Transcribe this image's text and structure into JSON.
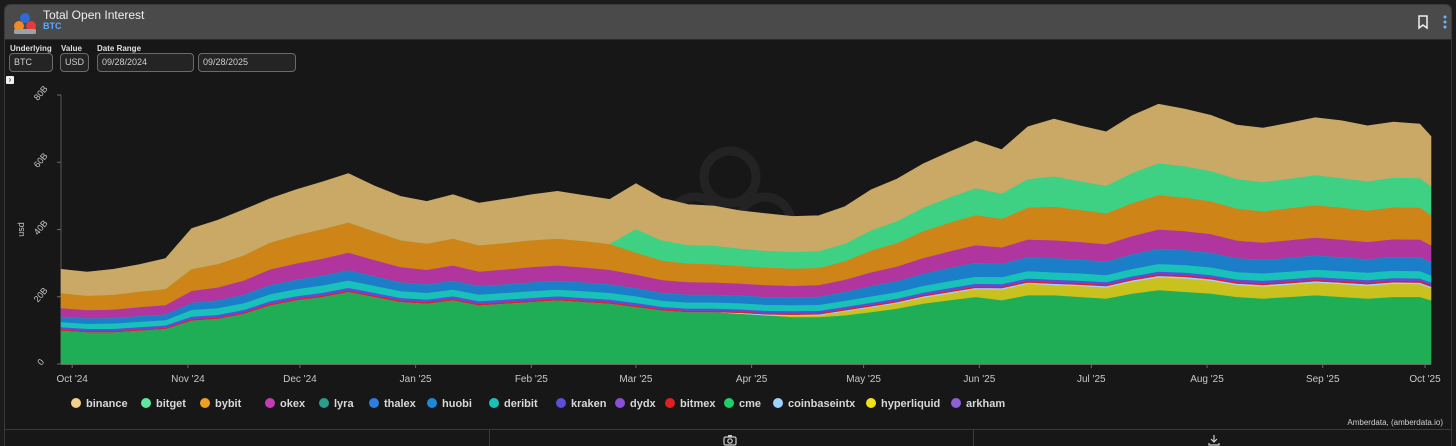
{
  "header": {
    "title": "Total Open Interest",
    "subtitle": "BTC"
  },
  "controls": {
    "underlying_label": "Underlying",
    "underlying_value": "BTC",
    "value_label": "Value",
    "value_value": "USD",
    "date_range_label": "Date Range",
    "date_start": "09/28/2024",
    "date_end": "09/28/2025"
  },
  "credit": "Amberdata, (amberdata.io)",
  "chart_data": {
    "type": "area",
    "title": "Total Open Interest",
    "xlabel": "",
    "ylabel": "usd",
    "stacked": true,
    "ylim": [
      0,
      80
    ],
    "y_unit": "B",
    "yticks": [
      "0",
      "20B",
      "40B",
      "60B",
      "80B"
    ],
    "ytick_values": [
      0,
      20,
      40,
      60,
      80
    ],
    "xlim": [
      0,
      367
    ],
    "xticks": [
      "Oct '24",
      "Nov '24",
      "Dec '24",
      "Jan '25",
      "Feb '25",
      "Mar '25",
      "Apr '25",
      "May '25",
      "Jun '25",
      "Jul '25",
      "Aug '25",
      "Sep '25",
      "Oct '25"
    ],
    "xtick_days": [
      3,
      34,
      64,
      95,
      126,
      154,
      185,
      215,
      246,
      276,
      307,
      338,
      368
    ],
    "legend_position": "bottom",
    "x_days": [
      0,
      7,
      14,
      21,
      28,
      35,
      42,
      49,
      56,
      63,
      70,
      77,
      84,
      91,
      98,
      105,
      112,
      119,
      126,
      133,
      140,
      147,
      154,
      161,
      168,
      175,
      182,
      189,
      196,
      203,
      210,
      217,
      224,
      231,
      238,
      245,
      252,
      259,
      266,
      273,
      280,
      287,
      294,
      301,
      308,
      315,
      322,
      329,
      336,
      343,
      350,
      357,
      364,
      367
    ],
    "series": [
      {
        "name": "cme",
        "color": "#1fae55",
        "values": [
          10,
          9.5,
          9.5,
          10,
          10.5,
          13,
          13.5,
          15,
          17.5,
          19,
          20,
          21.5,
          20,
          18.5,
          18,
          19,
          17.5,
          18,
          18.5,
          19,
          18.5,
          18,
          17,
          16,
          15.5,
          15.5,
          15,
          14.5,
          14,
          14,
          14.5,
          15.5,
          16.5,
          18,
          19,
          20,
          19,
          20.5,
          20.5,
          20,
          19.5,
          21,
          22,
          21.5,
          21,
          20,
          19.5,
          20,
          20.5,
          20,
          19.5,
          20,
          20,
          19
        ]
      },
      {
        "name": "hyperliquid",
        "color": "#c8c11e",
        "values": [
          0,
          0,
          0,
          0,
          0,
          0,
          0,
          0,
          0,
          0,
          0,
          0,
          0,
          0,
          0,
          0,
          0,
          0,
          0,
          0,
          0,
          0,
          0,
          0,
          0,
          0,
          0,
          0,
          0.4,
          0.5,
          1.2,
          1.4,
          1.6,
          1.8,
          2,
          2.3,
          3.2,
          3.4,
          3.0,
          3.2,
          3.3,
          3.5,
          3.8,
          4.0,
          3.8,
          3.5,
          3.6,
          3.6,
          3.7,
          3.8,
          3.8,
          3.9,
          3.8,
          3.6
        ]
      },
      {
        "name": "coinbaseintx",
        "color": "#9fd3ff",
        "values": [
          0,
          0,
          0,
          0,
          0,
          0,
          0,
          0,
          0,
          0,
          0,
          0,
          0,
          0,
          0,
          0,
          0,
          0,
          0,
          0,
          0,
          0,
          0,
          0,
          0,
          0,
          0.25,
          0.3,
          0.3,
          0.3,
          0.3,
          0.3,
          0.35,
          0.35,
          0.4,
          0.4,
          0.4,
          0.4,
          0.4,
          0.4,
          0.4,
          0.45,
          0.45,
          0.45,
          0.45,
          0.45,
          0.45,
          0.45,
          0.45,
          0.45,
          0.45,
          0.45,
          0.45,
          0.45
        ]
      },
      {
        "name": "arkham",
        "color": "#8e5fd6",
        "values": [
          0,
          0,
          0,
          0,
          0,
          0,
          0,
          0,
          0,
          0,
          0,
          0,
          0,
          0,
          0,
          0,
          0,
          0,
          0,
          0,
          0,
          0,
          0,
          0,
          0,
          0,
          0,
          0,
          0,
          0,
          0,
          0,
          0,
          0,
          0,
          0,
          0,
          0,
          0,
          0,
          0,
          0,
          0,
          0,
          0,
          0,
          0,
          0,
          0,
          0,
          0,
          0,
          0,
          0
        ]
      },
      {
        "name": "bitmex",
        "color": "#e02020",
        "values": [
          0.3,
          0.3,
          0.3,
          0.3,
          0.3,
          0.35,
          0.35,
          0.35,
          0.4,
          0.4,
          0.4,
          0.4,
          0.4,
          0.4,
          0.4,
          0.4,
          0.4,
          0.4,
          0.4,
          0.4,
          0.4,
          0.4,
          0.4,
          0.35,
          0.35,
          0.35,
          0.35,
          0.35,
          0.35,
          0.35,
          0.35,
          0.35,
          0.35,
          0.35,
          0.4,
          0.4,
          0.4,
          0.4,
          0.4,
          0.4,
          0.4,
          0.4,
          0.45,
          0.45,
          0.45,
          0.45,
          0.45,
          0.45,
          0.45,
          0.45,
          0.45,
          0.45,
          0.45,
          0.45
        ]
      },
      {
        "name": "dydx",
        "color": "#7d45c8",
        "values": [
          0.2,
          0.2,
          0.2,
          0.2,
          0.2,
          0.2,
          0.2,
          0.2,
          0.2,
          0.2,
          0.2,
          0.2,
          0.2,
          0.2,
          0.2,
          0.2,
          0.2,
          0.2,
          0.2,
          0.2,
          0.2,
          0.2,
          0.2,
          0.2,
          0.2,
          0.2,
          0.2,
          0.2,
          0.2,
          0.2,
          0.2,
          0.2,
          0.2,
          0.2,
          0.2,
          0.2,
          0.2,
          0.2,
          0.2,
          0.2,
          0.2,
          0.2,
          0.2,
          0.2,
          0.2,
          0.2,
          0.2,
          0.2,
          0.2,
          0.2,
          0.2,
          0.2,
          0.2,
          0.2
        ]
      },
      {
        "name": "kraken",
        "color": "#5a4fd8",
        "values": [
          0.5,
          0.5,
          0.5,
          0.5,
          0.5,
          0.6,
          0.6,
          0.6,
          0.6,
          0.6,
          0.6,
          0.6,
          0.6,
          0.6,
          0.6,
          0.6,
          0.6,
          0.6,
          0.6,
          0.6,
          0.6,
          0.6,
          0.6,
          0.5,
          0.5,
          0.5,
          0.5,
          0.5,
          0.5,
          0.5,
          0.5,
          0.5,
          0.5,
          0.6,
          0.6,
          0.6,
          0.6,
          0.6,
          0.6,
          0.6,
          0.6,
          0.6,
          0.6,
          0.6,
          0.6,
          0.6,
          0.6,
          0.6,
          0.6,
          0.6,
          0.6,
          0.6,
          0.6,
          0.6
        ]
      },
      {
        "name": "deribit",
        "color": "#19c2b8",
        "values": [
          1.5,
          1.5,
          1.6,
          1.6,
          1.6,
          2,
          2,
          2,
          2.1,
          2.1,
          2.2,
          2.2,
          2.1,
          2,
          2,
          2,
          2,
          2,
          2,
          2,
          2,
          2,
          2,
          1.8,
          1.8,
          1.8,
          1.8,
          1.8,
          1.8,
          1.8,
          1.8,
          1.9,
          1.9,
          2,
          2.1,
          2.1,
          2.1,
          2.2,
          2.2,
          2.2,
          2.1,
          2.2,
          2.3,
          2.3,
          2.3,
          2.2,
          2.2,
          2.2,
          2.2,
          2.2,
          2.2,
          2.2,
          2.2,
          2.1
        ]
      },
      {
        "name": "huobi",
        "color": "#1a7fc8",
        "values": [
          1.5,
          1.5,
          1.5,
          1.6,
          1.6,
          2,
          2.2,
          2.4,
          2.6,
          2.7,
          2.8,
          2.9,
          2.7,
          2.5,
          2.4,
          2.5,
          2.4,
          2.4,
          2.5,
          2.5,
          2.5,
          2.4,
          2.3,
          2.2,
          2.2,
          2.2,
          2.2,
          2.2,
          2.2,
          2.3,
          2.5,
          3,
          3.2,
          3.5,
          3.8,
          4,
          3.8,
          4,
          4.1,
          4,
          3.9,
          4.2,
          4.4,
          4.3,
          4.2,
          4,
          3.9,
          4,
          4.1,
          4,
          3.9,
          4,
          4,
          3.8
        ]
      },
      {
        "name": "thalex",
        "color": "#2f7de0",
        "values": [
          0.1,
          0.1,
          0.1,
          0.1,
          0.1,
          0.1,
          0.1,
          0.1,
          0.1,
          0.1,
          0.1,
          0.1,
          0.1,
          0.1,
          0.1,
          0.1,
          0.1,
          0.1,
          0.1,
          0.1,
          0.1,
          0.1,
          0.1,
          0.1,
          0.1,
          0.1,
          0.1,
          0.1,
          0.1,
          0.1,
          0.1,
          0.1,
          0.1,
          0.1,
          0.1,
          0.1,
          0.1,
          0.1,
          0.1,
          0.1,
          0.1,
          0.1,
          0.1,
          0.1,
          0.1,
          0.1,
          0.1,
          0.1,
          0.1,
          0.1,
          0.1,
          0.1,
          0.1,
          0.1
        ]
      },
      {
        "name": "lyra",
        "color": "#2a9d8f",
        "values": [
          0.05,
          0.05,
          0.05,
          0.05,
          0.05,
          0.05,
          0.05,
          0.05,
          0.05,
          0.05,
          0.05,
          0.05,
          0.05,
          0.05,
          0.05,
          0.05,
          0.05,
          0.05,
          0.05,
          0.05,
          0.05,
          0.05,
          0.05,
          0.05,
          0.05,
          0.05,
          0.05,
          0.05,
          0.05,
          0.05,
          0.05,
          0.05,
          0.05,
          0.05,
          0.05,
          0.05,
          0.05,
          0.05,
          0.05,
          0.05,
          0.05,
          0.05,
          0.05,
          0.05,
          0.05,
          0.05,
          0.05,
          0.05,
          0.05,
          0.05,
          0.05,
          0.05,
          0.05,
          0.05
        ]
      },
      {
        "name": "okex",
        "color": "#b0359e",
        "values": [
          2.5,
          2.4,
          2.5,
          2.6,
          2.7,
          3.5,
          3.8,
          4.2,
          4.6,
          4.8,
          5,
          5.2,
          4.8,
          4.5,
          4.3,
          4.5,
          4.3,
          4.4,
          4.5,
          4.5,
          4.4,
          4.3,
          4,
          3.8,
          3.7,
          3.6,
          3.5,
          3.5,
          3.4,
          3.4,
          3.6,
          4,
          4.3,
          4.6,
          4.9,
          5.2,
          4.9,
          5.2,
          5.3,
          5.2,
          5.1,
          5.4,
          5.7,
          5.6,
          5.5,
          5.2,
          5.1,
          5.2,
          5.3,
          5.2,
          5.1,
          5.2,
          5.2,
          5
        ]
      },
      {
        "name": "bybit",
        "color": "#cf8417",
        "values": [
          4.5,
          4.3,
          4.4,
          4.6,
          4.8,
          6.5,
          7,
          7.5,
          8,
          8.4,
          8.8,
          9,
          8.5,
          8,
          7.8,
          8,
          7.8,
          7.9,
          8,
          8,
          7.9,
          7.7,
          6.5,
          5.8,
          5.5,
          5.4,
          5.2,
          5.2,
          5.1,
          5.1,
          5.5,
          6.5,
          7,
          8,
          8.5,
          9,
          8.5,
          9.5,
          10,
          9.5,
          9.2,
          9.8,
          10.2,
          10,
          9.8,
          9.5,
          9.3,
          9.5,
          9.6,
          9.5,
          9.3,
          9.5,
          9.5,
          9
        ]
      },
      {
        "name": "bitget",
        "color": "#3ed184",
        "values": [
          0,
          0,
          0,
          0,
          0,
          0,
          0,
          0,
          0,
          0,
          0,
          0,
          0,
          0,
          0,
          0,
          0,
          0,
          0,
          0,
          0,
          0,
          7,
          6,
          5.5,
          5.5,
          5.2,
          5,
          5,
          5,
          5.2,
          6,
          6.5,
          7,
          7.5,
          8,
          7.5,
          8.5,
          9,
          8.5,
          8.2,
          9,
          9.5,
          9.3,
          9,
          8.8,
          8.7,
          8.8,
          9,
          8.8,
          8.7,
          8.8,
          8.8,
          8.5
        ]
      },
      {
        "name": "binance",
        "color": "#c9a965",
        "values": [
          7,
          7,
          7.5,
          8,
          9,
          12,
          13,
          13.5,
          13,
          13.5,
          14,
          14.5,
          13.5,
          13,
          12.5,
          13,
          12.5,
          13,
          13.5,
          14,
          13.5,
          13.2,
          13.5,
          12.5,
          12,
          11.8,
          11.2,
          11,
          10.5,
          10.5,
          11,
          12,
          12.5,
          13,
          13.5,
          14,
          13,
          15.5,
          17,
          16.5,
          16,
          17,
          17.5,
          17,
          16.5,
          16,
          16,
          16.5,
          17,
          17,
          16.5,
          16.5,
          16,
          14.8
        ]
      }
    ]
  },
  "legend": [
    {
      "name": "binance",
      "color": "#f0d08a"
    },
    {
      "name": "bitget",
      "color": "#5ee8a0"
    },
    {
      "name": "bybit",
      "color": "#f0a020"
    },
    {
      "name": "okex",
      "color": "#c73ab4"
    },
    {
      "name": "lyra",
      "color": "#2a9d8f"
    },
    {
      "name": "thalex",
      "color": "#2f7de0"
    },
    {
      "name": "huobi",
      "color": "#1a8ad8"
    },
    {
      "name": "deribit",
      "color": "#19c2b8"
    },
    {
      "name": "kraken",
      "color": "#5a4fd8"
    },
    {
      "name": "dydx",
      "color": "#8a4fd8"
    },
    {
      "name": "bitmex",
      "color": "#e02020"
    },
    {
      "name": "cme",
      "color": "#1fd06a"
    },
    {
      "name": "coinbaseintx",
      "color": "#9fd3ff"
    },
    {
      "name": "hyperliquid",
      "color": "#f2e21a"
    },
    {
      "name": "arkham",
      "color": "#8e5fd6"
    }
  ]
}
